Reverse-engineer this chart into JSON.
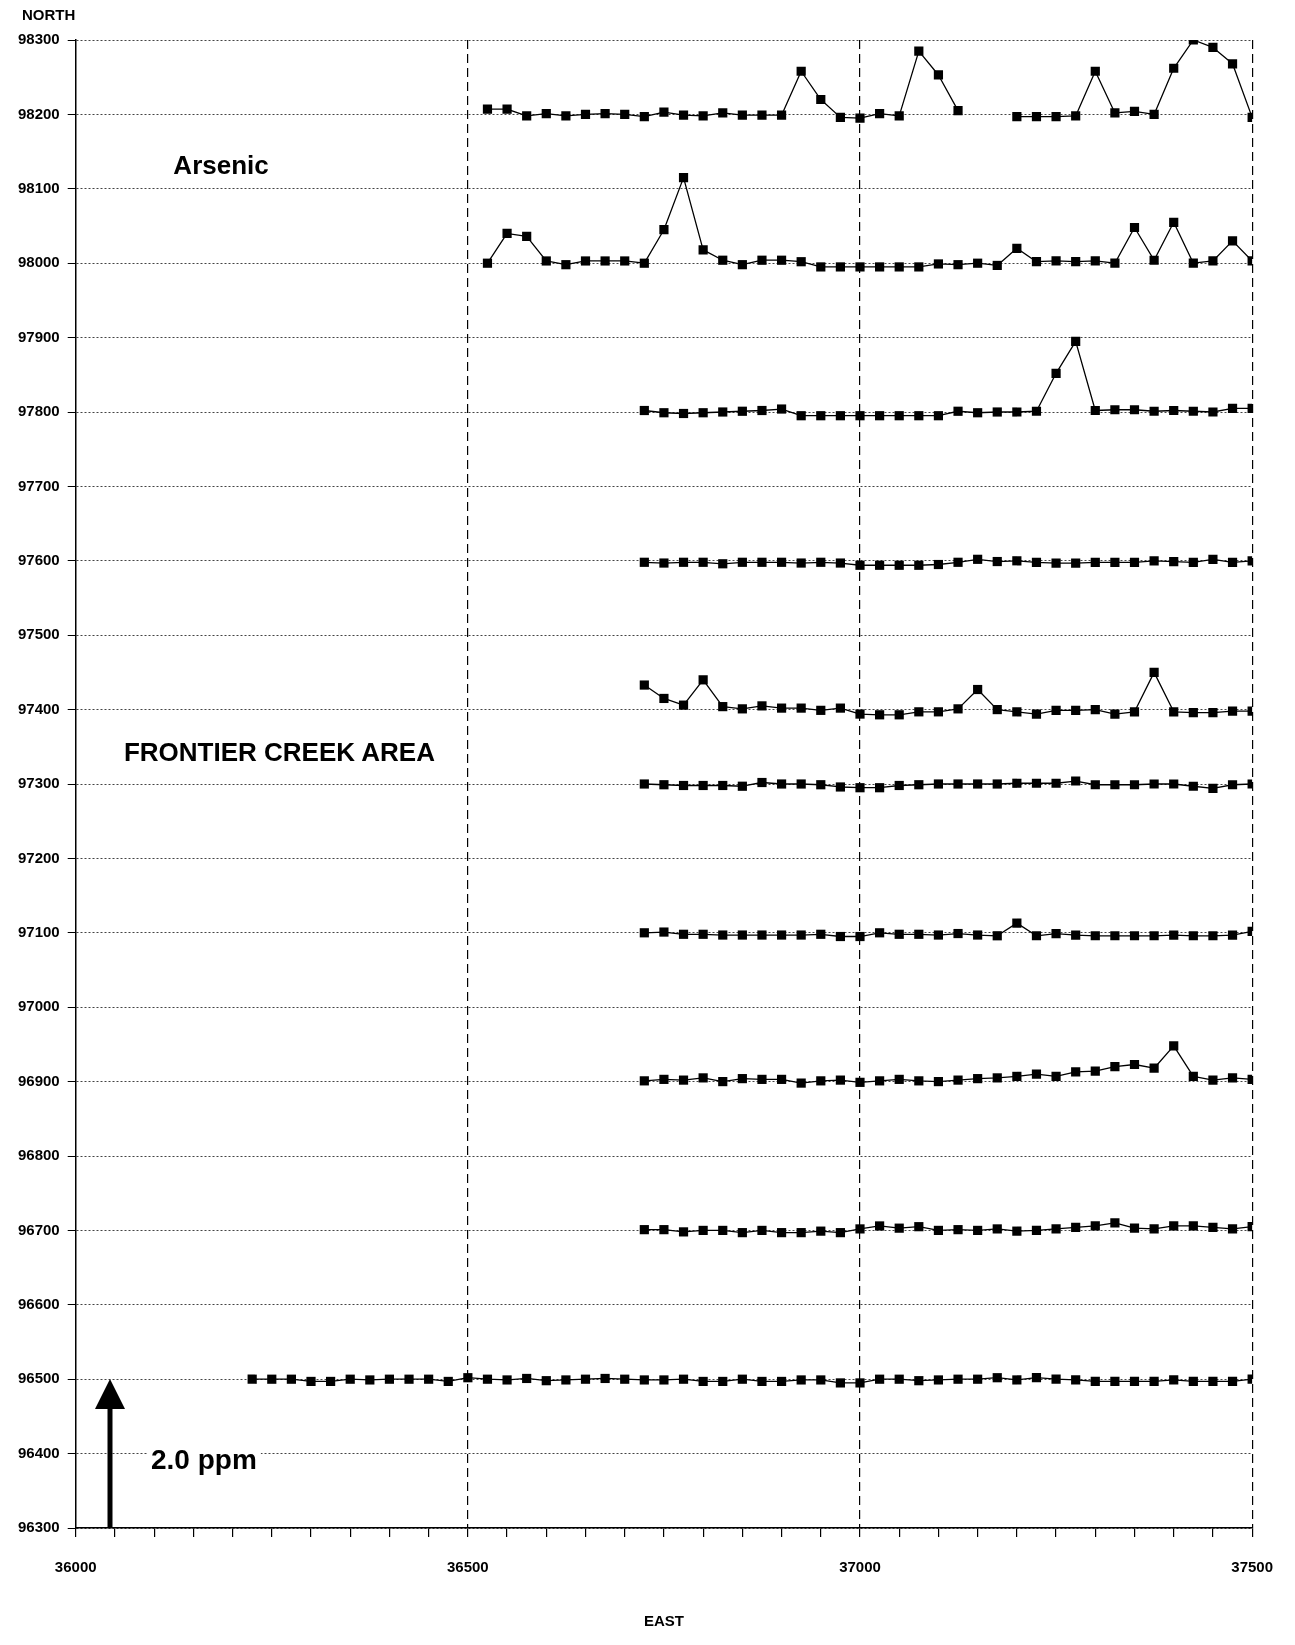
{
  "chart_data": {
    "type": "line",
    "xlabel": "EAST",
    "ylabel": "NORTH",
    "annotations": [
      "Arsenic",
      "FRONTIER CREEK AREA",
      "2.0 ppm"
    ],
    "x": [
      36225,
      36250,
      36275,
      36300,
      36325,
      36350,
      36375,
      36400,
      36425,
      36450,
      36475,
      36500,
      36525,
      36550,
      36575,
      36600,
      36625,
      36650,
      36675,
      36700,
      36725,
      36750,
      36775,
      36800,
      36825,
      36850,
      36875,
      36900,
      36925,
      36950,
      36975,
      37000,
      37025,
      37050,
      37075,
      37100,
      37125,
      37150,
      37175,
      37200,
      37225,
      37250,
      37275,
      37300,
      37325,
      37350,
      37375,
      37400,
      37425,
      37450,
      37475,
      37500
    ],
    "series": [
      {
        "color": "#000000",
        "values": [
          null,
          null,
          null,
          null,
          null,
          null,
          null,
          null,
          null,
          null,
          null,
          null,
          98207,
          98207,
          98198,
          98201,
          98198,
          98200,
          98201,
          98200,
          98197,
          98203,
          98199,
          98198,
          98202,
          98199,
          98199,
          98199,
          98258,
          98220,
          98196,
          98195,
          98201,
          98198,
          98285,
          98253,
          98205,
          null,
          null,
          98197,
          98197,
          98197,
          98198,
          98258,
          98202,
          98204,
          98200,
          98262,
          98300,
          98290,
          98268,
          98196
        ]
      },
      {
        "color": "#000000",
        "values": [
          null,
          null,
          null,
          null,
          null,
          null,
          null,
          null,
          null,
          null,
          null,
          null,
          98000,
          98040,
          98036,
          98003,
          97998,
          98003,
          98003,
          98003,
          98000,
          98045,
          98115,
          98018,
          98004,
          97998,
          98004,
          98004,
          98002,
          97995,
          97995,
          97995,
          97995,
          97995,
          97995,
          97999,
          97998,
          98000,
          97997,
          98020,
          98002,
          98003,
          98002,
          98003,
          98000,
          98048,
          98004,
          98055,
          98000,
          98003,
          98030,
          98003
        ]
      },
      {
        "color": "#000000",
        "values": [
          null,
          null,
          null,
          null,
          null,
          null,
          null,
          null,
          null,
          null,
          null,
          null,
          null,
          null,
          null,
          null,
          null,
          null,
          null,
          null,
          97802,
          97799,
          97798,
          97799,
          97800,
          97801,
          97802,
          97804,
          97795,
          97795,
          97795,
          97795,
          97795,
          97795,
          97795,
          97795,
          97801,
          97799,
          97800,
          97800,
          97801,
          97852,
          97895,
          97802,
          97803,
          97803,
          97801,
          97802,
          97801,
          97800,
          97805,
          97805
        ]
      },
      {
        "color": "#000000",
        "values": [
          null,
          null,
          null,
          null,
          null,
          null,
          null,
          null,
          null,
          null,
          null,
          null,
          null,
          null,
          null,
          null,
          null,
          null,
          null,
          null,
          97598,
          97597,
          97598,
          97598,
          97596,
          97598,
          97598,
          97598,
          97597,
          97598,
          97597,
          97594,
          97594,
          97594,
          97594,
          97595,
          97598,
          97602,
          97599,
          97600,
          97598,
          97597,
          97597,
          97598,
          97598,
          97598,
          97600,
          97599,
          97598,
          97602,
          97598,
          97600
        ]
      },
      {
        "color": "#000000",
        "values": [
          null,
          null,
          null,
          null,
          null,
          null,
          null,
          null,
          null,
          null,
          null,
          null,
          null,
          null,
          null,
          null,
          null,
          null,
          null,
          null,
          97433,
          97415,
          97406,
          97440,
          97404,
          97401,
          97405,
          97402,
          97402,
          97399,
          97402,
          97394,
          97393,
          97393,
          97397,
          97397,
          97401,
          97427,
          97400,
          97397,
          97394,
          97399,
          97399,
          97400,
          97394,
          97397,
          97450,
          97397,
          97396,
          97396,
          97398,
          97398
        ]
      },
      {
        "color": "#000000",
        "values": [
          null,
          null,
          null,
          null,
          null,
          null,
          null,
          null,
          null,
          null,
          null,
          null,
          null,
          null,
          null,
          null,
          null,
          null,
          null,
          null,
          97300,
          97299,
          97298,
          97298,
          97298,
          97297,
          97302,
          97300,
          97300,
          97299,
          97296,
          97295,
          97295,
          97298,
          97299,
          97300,
          97300,
          97300,
          97300,
          97301,
          97301,
          97301,
          97304,
          97299,
          97299,
          97299,
          97300,
          97300,
          97297,
          97294,
          97299,
          97300
        ]
      },
      {
        "color": "#000000",
        "values": [
          null,
          null,
          null,
          null,
          null,
          null,
          null,
          null,
          null,
          null,
          null,
          null,
          null,
          null,
          null,
          null,
          null,
          null,
          null,
          null,
          97100,
          97101,
          97098,
          97098,
          97097,
          97097,
          97097,
          97097,
          97097,
          97098,
          97095,
          97095,
          97100,
          97098,
          97098,
          97097,
          97099,
          97097,
          97096,
          97113,
          97096,
          97099,
          97097,
          97096,
          97096,
          97096,
          97096,
          97097,
          97096,
          97096,
          97097,
          97102
        ]
      },
      {
        "color": "#000000",
        "values": [
          null,
          null,
          null,
          null,
          null,
          null,
          null,
          null,
          null,
          null,
          null,
          null,
          null,
          null,
          null,
          null,
          null,
          null,
          null,
          null,
          96901,
          96903,
          96902,
          96905,
          96900,
          96904,
          96903,
          96903,
          96898,
          96901,
          96902,
          96899,
          96901,
          96903,
          96901,
          96900,
          96902,
          96904,
          96905,
          96907,
          96910,
          96907,
          96913,
          96914,
          96920,
          96923,
          96918,
          96948,
          96907,
          96902,
          96905,
          96903
        ]
      },
      {
        "color": "#000000",
        "values": [
          null,
          null,
          null,
          null,
          null,
          null,
          null,
          null,
          null,
          null,
          null,
          null,
          null,
          null,
          null,
          null,
          null,
          null,
          null,
          null,
          96701,
          96701,
          96698,
          96700,
          96700,
          96697,
          96700,
          96697,
          96697,
          96699,
          96697,
          96702,
          96706,
          96703,
          96705,
          96700,
          96701,
          96700,
          96702,
          96699,
          96700,
          96702,
          96704,
          96706,
          96710,
          96703,
          96702,
          96706,
          96706,
          96704,
          96702,
          96705
        ]
      },
      {
        "color": "#000000",
        "values": [
          96500,
          96500,
          96500,
          96497,
          96497,
          96500,
          96499,
          96500,
          96500,
          96500,
          96497,
          96502,
          96500,
          96499,
          96501,
          96498,
          96499,
          96500,
          96501,
          96500,
          96499,
          96499,
          96500,
          96497,
          96497,
          96500,
          96497,
          96497,
          96499,
          96499,
          96495,
          96495,
          96500,
          96500,
          96498,
          96499,
          96500,
          96500,
          96502,
          96499,
          96502,
          96500,
          96499,
          96497,
          96497,
          96497,
          96497,
          96499,
          96497,
          96497,
          96497,
          96500
        ]
      }
    ],
    "xlim": [
      36000,
      37500
    ],
    "xticks": [
      36000,
      {
        "value": 36050,
        "label": null
      },
      {
        "value": 36100,
        "label": null
      },
      {
        "value": 36150,
        "label": null
      },
      {
        "value": 36200,
        "label": null
      },
      {
        "value": 36250,
        "label": null
      },
      {
        "value": 36300,
        "label": null
      },
      {
        "value": 36350,
        "label": null
      },
      {
        "value": 36400,
        "label": null
      },
      {
        "value": 36450,
        "label": null
      },
      36500,
      {
        "value": 36550,
        "label": null
      },
      {
        "value": 36600,
        "label": null
      },
      {
        "value": 36650,
        "label": null
      },
      {
        "value": 36700,
        "label": null
      },
      {
        "value": 36750,
        "label": null
      },
      {
        "value": 36800,
        "label": null
      },
      {
        "value": 36850,
        "label": null
      },
      {
        "value": 36900,
        "label": null
      },
      {
        "value": 36950,
        "label": null
      },
      37000,
      {
        "value": 37050,
        "label": null
      },
      {
        "value": 37100,
        "label": null
      },
      {
        "value": 37150,
        "label": null
      },
      {
        "value": 37200,
        "label": null
      },
      {
        "value": 37250,
        "label": null
      },
      {
        "value": 37300,
        "label": null
      },
      {
        "value": 37350,
        "label": null
      },
      {
        "value": 37400,
        "label": null
      },
      {
        "value": 37450,
        "label": null
      },
      37500
    ],
    "ylim": [
      96300,
      98300
    ],
    "yticks": [
      96300,
      96400,
      96500,
      96600,
      96700,
      96800,
      96900,
      97000,
      97100,
      97200,
      97300,
      97400,
      97500,
      97600,
      97700,
      97800,
      97900,
      98000,
      98100,
      98200,
      98300
    ],
    "grid": true,
    "legend": false,
    "marker": "square",
    "line_style": "solid"
  }
}
